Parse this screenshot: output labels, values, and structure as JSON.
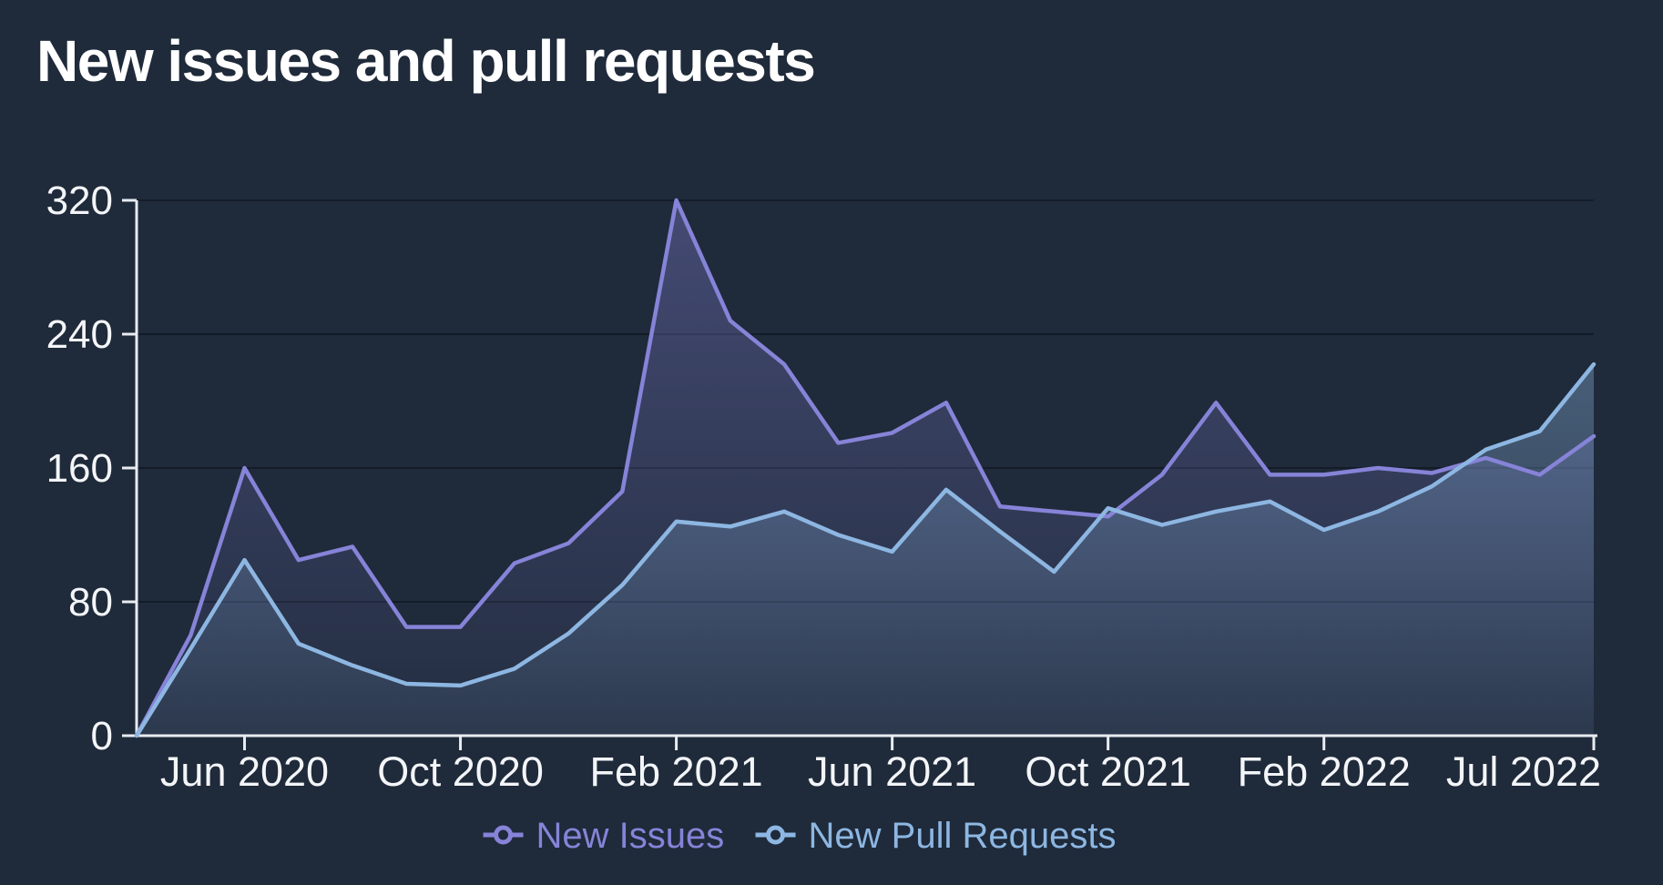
{
  "title": "New issues and pull requests",
  "chart_data": {
    "type": "area",
    "title": "New issues and pull requests",
    "xlabel": "",
    "ylabel": "",
    "ylim": [
      0,
      320
    ],
    "y_ticks": [
      0,
      80,
      160,
      240,
      320
    ],
    "grid": true,
    "legend_position": "bottom",
    "background": "#1f2a3a",
    "categories": [
      "Apr 2020",
      "May 2020",
      "Jun 2020",
      "Jul 2020",
      "Aug 2020",
      "Sep 2020",
      "Oct 2020",
      "Nov 2020",
      "Dec 2020",
      "Jan 2021",
      "Feb 2021",
      "Mar 2021",
      "Apr 2021",
      "May 2021",
      "Jun 2021",
      "Jul 2021",
      "Aug 2021",
      "Sep 2021",
      "Oct 2021",
      "Nov 2021",
      "Dec 2021",
      "Jan 2022",
      "Feb 2022",
      "Mar 2022",
      "Apr 2022",
      "May 2022",
      "Jun 2022",
      "Jul 2022"
    ],
    "x_ticks": [
      {
        "index": 2,
        "label": "Jun 2020"
      },
      {
        "index": 6,
        "label": "Oct 2020"
      },
      {
        "index": 10,
        "label": "Feb 2021"
      },
      {
        "index": 14,
        "label": "Jun 2021"
      },
      {
        "index": 18,
        "label": "Oct 2021"
      },
      {
        "index": 22,
        "label": "Feb 2022"
      },
      {
        "index": 27,
        "label": "Jul 2022"
      }
    ],
    "series": [
      {
        "name": "New Issues",
        "color": "#8683d8",
        "values": [
          0,
          60,
          160,
          105,
          113,
          65,
          65,
          103,
          115,
          146,
          320,
          248,
          222,
          175,
          181,
          199,
          137,
          134,
          131,
          156,
          199,
          156,
          156,
          160,
          157,
          166,
          156,
          179
        ]
      },
      {
        "name": "New Pull Requests",
        "color": "#8db7e2",
        "values": [
          0,
          52,
          105,
          55,
          42,
          31,
          30,
          40,
          61,
          90,
          128,
          125,
          134,
          120,
          110,
          147,
          122,
          98,
          136,
          126,
          134,
          140,
          123,
          134,
          149,
          171,
          182,
          222
        ]
      }
    ]
  }
}
